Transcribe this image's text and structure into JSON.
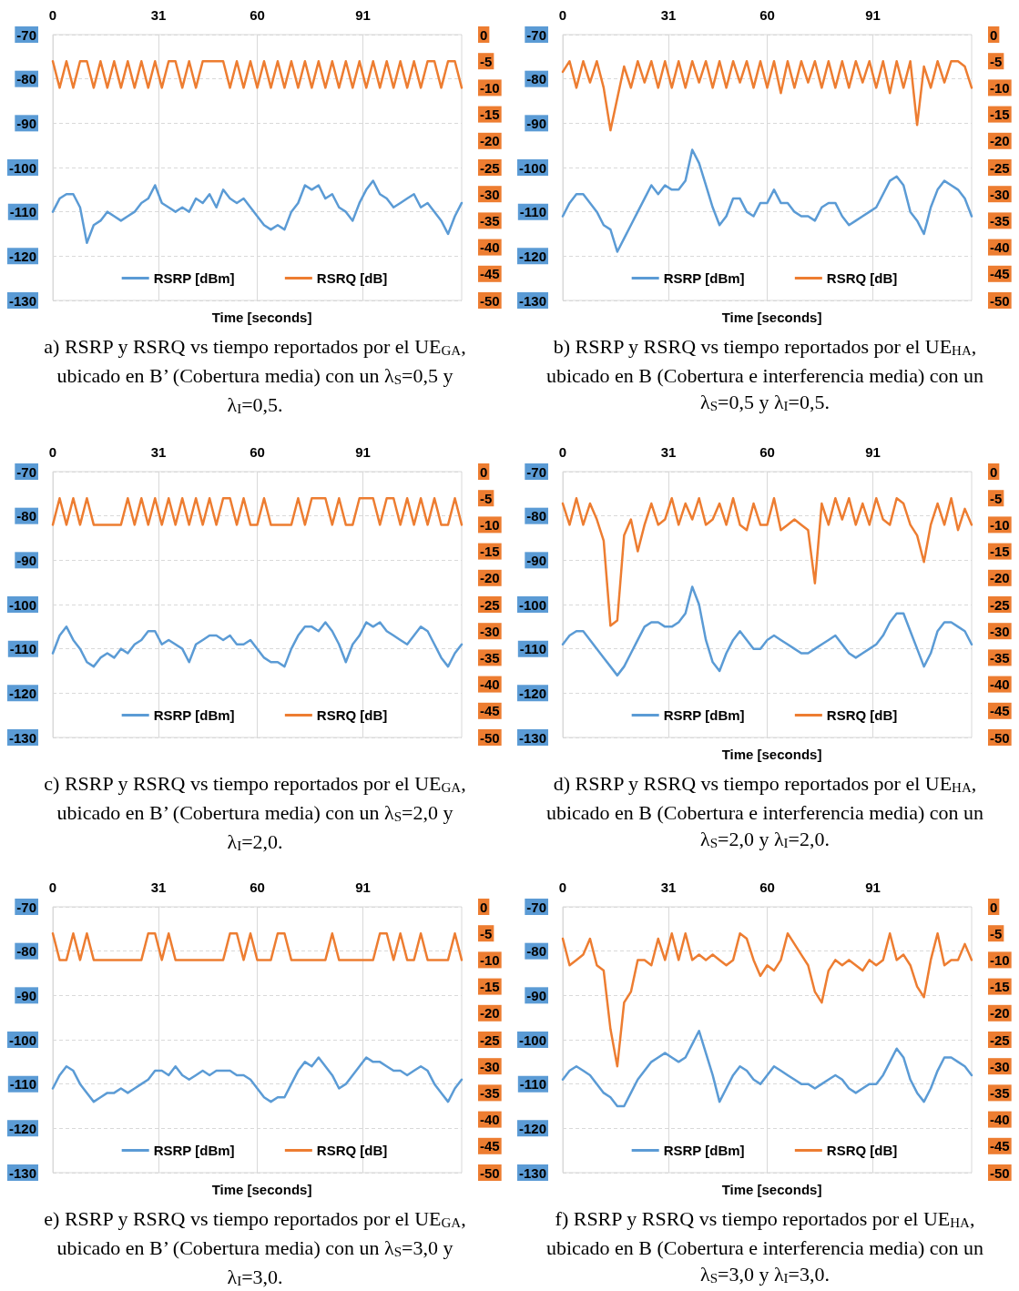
{
  "chart_data": [
    {
      "type": "line",
      "title": "a) RSRP y RSRQ vs tiempo reportados por el UE$_{GA}$, ubicado en B’ (Cobertura media) con un λ$_{S}$=0,5 y λ$_{I}$=0,5.",
      "xlabel": "Time [seconds]",
      "x": [
        0,
        2,
        4,
        6,
        8,
        10,
        12,
        14,
        16,
        18,
        20,
        22,
        24,
        26,
        28,
        30,
        32,
        34,
        36,
        38,
        40,
        42,
        44,
        46,
        48,
        50,
        52,
        54,
        56,
        58,
        60,
        62,
        64,
        66,
        68,
        70,
        72,
        74,
        76,
        78,
        80,
        82,
        84,
        86,
        88,
        90,
        92,
        94,
        96,
        98,
        100,
        102,
        104,
        106,
        108,
        110,
        112,
        114,
        116,
        118,
        120
      ],
      "series": [
        {
          "name": "RSRP [dBm]",
          "color": "#5b9bd5",
          "values": [
            -110,
            -107,
            -106,
            -106,
            -109,
            -117,
            -113,
            -112,
            -110,
            -111,
            -112,
            -111,
            -110,
            -108,
            -107,
            -104,
            -108,
            -109,
            -110,
            -109,
            -110,
            -107,
            -108,
            -106,
            -109,
            -105,
            -107,
            -108,
            -107,
            -109,
            -111,
            -113,
            -114,
            -113,
            -114,
            -110,
            -108,
            -104,
            -105,
            -104,
            -107,
            -106,
            -109,
            -110,
            -112,
            -108,
            -105,
            -103,
            -106,
            -107,
            -109,
            -108,
            -107,
            -106,
            -109,
            -108,
            -110,
            -112,
            -115,
            -111,
            -108
          ]
        },
        {
          "name": "RSRQ [dB]",
          "color": "#ed7d31",
          "axis": "y2",
          "values": [
            -5,
            -10,
            -5,
            -10,
            -5,
            -5,
            -10,
            -5,
            -10,
            -5,
            -10,
            -5,
            -10,
            -5,
            -10,
            -5,
            -10,
            -5,
            -5,
            -10,
            -5,
            -10,
            -5,
            -5,
            -5,
            -5,
            -10,
            -5,
            -10,
            -5,
            -10,
            -5,
            -10,
            -5,
            -10,
            -5,
            -10,
            -5,
            -10,
            -5,
            -10,
            -5,
            -10,
            -5,
            -10,
            -5,
            -10,
            -5,
            -10,
            -5,
            -10,
            -5,
            -10,
            -5,
            -10,
            -5,
            -5,
            -10,
            -5,
            -5,
            -10
          ]
        }
      ],
      "xlim": [
        0,
        120
      ],
      "xticks": [
        0,
        31,
        60,
        91
      ],
      "ylim": [
        -130,
        -70
      ],
      "yticks": [
        -130,
        -120,
        -110,
        -100,
        -90,
        -80,
        -70
      ],
      "y2lim": [
        -50,
        0
      ],
      "y2ticks": [
        -50,
        -45,
        -40,
        -35,
        -30,
        -25,
        -20,
        -15,
        -10,
        -5,
        0
      ],
      "grid": true,
      "legend": "bottom"
    },
    {
      "type": "line",
      "title": "b) RSRP y RSRQ vs tiempo reportados por el UE$_{HA}$, ubicado en B (Cobertura e interferencia media) con un λ$_{S}$=0,5 y λ$_{I}$=0,5.",
      "xlabel": "Time [seconds]",
      "x": [
        0,
        2,
        4,
        6,
        8,
        10,
        12,
        14,
        16,
        18,
        20,
        22,
        24,
        26,
        28,
        30,
        32,
        34,
        36,
        38,
        40,
        42,
        44,
        46,
        48,
        50,
        52,
        54,
        56,
        58,
        60,
        62,
        64,
        66,
        68,
        70,
        72,
        74,
        76,
        78,
        80,
        82,
        84,
        86,
        88,
        90,
        92,
        94,
        96,
        98,
        100,
        102,
        104,
        106,
        108,
        110,
        112,
        114,
        116,
        118,
        120
      ],
      "series": [
        {
          "name": "RSRP [dBm]",
          "color": "#5b9bd5",
          "values": [
            -111,
            -108,
            -106,
            -106,
            -108,
            -110,
            -113,
            -114,
            -119,
            -116,
            -113,
            -110,
            -107,
            -104,
            -106,
            -104,
            -105,
            -105,
            -103,
            -96,
            -99,
            -104,
            -109,
            -113,
            -111,
            -107,
            -107,
            -110,
            -111,
            -108,
            -108,
            -105,
            -108,
            -108,
            -110,
            -111,
            -111,
            -112,
            -109,
            -108,
            -108,
            -111,
            -113,
            -112,
            -111,
            -110,
            -109,
            -106,
            -103,
            -102,
            -104,
            -110,
            -112,
            -115,
            -109,
            -105,
            -103,
            -104,
            -105,
            -107,
            -111
          ]
        },
        {
          "name": "RSRQ [dB]",
          "color": "#ed7d31",
          "axis": "y2",
          "values": [
            -7,
            -5,
            -10,
            -5,
            -9,
            -5,
            -10,
            -18,
            -12,
            -6,
            -10,
            -5,
            -9,
            -5,
            -10,
            -5,
            -10,
            -5,
            -10,
            -5,
            -9,
            -5,
            -10,
            -5,
            -10,
            -5,
            -9,
            -5,
            -10,
            -5,
            -10,
            -5,
            -11,
            -5,
            -10,
            -5,
            -9,
            -5,
            -10,
            -5,
            -10,
            -5,
            -10,
            -5,
            -9,
            -5,
            -10,
            -5,
            -11,
            -5,
            -10,
            -5,
            -17,
            -6,
            -10,
            -5,
            -9,
            -5,
            -5,
            -6,
            -10
          ]
        }
      ],
      "xlim": [
        0,
        120
      ],
      "xticks": [
        0,
        31,
        60,
        91
      ],
      "ylim": [
        -130,
        -70
      ],
      "yticks": [
        -130,
        -120,
        -110,
        -100,
        -90,
        -80,
        -70
      ],
      "y2lim": [
        -50,
        0
      ],
      "y2ticks": [
        -50,
        -45,
        -40,
        -35,
        -30,
        -25,
        -20,
        -15,
        -10,
        -5,
        0
      ],
      "grid": true,
      "legend": "bottom"
    },
    {
      "type": "line",
      "title": "c) RSRP y RSRQ vs tiempo reportados por el UE$_{GA}$, ubicado en B’ (Cobertura media) con un λ$_{S}$=2,0 y λ$_{I}$=2,0.",
      "x": [
        0,
        2,
        4,
        6,
        8,
        10,
        12,
        14,
        16,
        18,
        20,
        22,
        24,
        26,
        28,
        30,
        32,
        34,
        36,
        38,
        40,
        42,
        44,
        46,
        48,
        50,
        52,
        54,
        56,
        58,
        60,
        62,
        64,
        66,
        68,
        70,
        72,
        74,
        76,
        78,
        80,
        82,
        84,
        86,
        88,
        90,
        92,
        94,
        96,
        98,
        100,
        102,
        104,
        106,
        108,
        110,
        112,
        114,
        116,
        118,
        120
      ],
      "series": [
        {
          "name": "RSRP [dBm]",
          "color": "#5b9bd5",
          "values": [
            -111,
            -107,
            -105,
            -108,
            -110,
            -113,
            -114,
            -112,
            -111,
            -112,
            -110,
            -111,
            -109,
            -108,
            -106,
            -106,
            -109,
            -108,
            -109,
            -110,
            -113,
            -109,
            -108,
            -107,
            -107,
            -108,
            -107,
            -109,
            -109,
            -108,
            -110,
            -112,
            -113,
            -113,
            -114,
            -110,
            -107,
            -105,
            -105,
            -106,
            -104,
            -106,
            -109,
            -113,
            -109,
            -107,
            -104,
            -105,
            -104,
            -106,
            -107,
            -108,
            -109,
            -107,
            -105,
            -106,
            -109,
            -112,
            -114,
            -111,
            -109
          ]
        },
        {
          "name": "RSRQ [dB]",
          "color": "#ed7d31",
          "axis": "y2",
          "values": [
            -10,
            -5,
            -10,
            -5,
            -10,
            -5,
            -10,
            -10,
            -10,
            -10,
            -10,
            -5,
            -10,
            -5,
            -10,
            -5,
            -10,
            -5,
            -10,
            -5,
            -10,
            -5,
            -10,
            -5,
            -10,
            -5,
            -5,
            -10,
            -5,
            -10,
            -10,
            -5,
            -10,
            -10,
            -10,
            -10,
            -5,
            -10,
            -5,
            -5,
            -5,
            -10,
            -5,
            -10,
            -10,
            -5,
            -5,
            -5,
            -10,
            -5,
            -5,
            -10,
            -5,
            -10,
            -5,
            -10,
            -5,
            -10,
            -10,
            -5,
            -10
          ]
        }
      ],
      "xlim": [
        0,
        120
      ],
      "xticks": [
        0,
        31,
        60,
        91
      ],
      "ylim": [
        -130,
        -70
      ],
      "yticks": [
        -130,
        -120,
        -110,
        -100,
        -90,
        -80,
        -70
      ],
      "y2lim": [
        -50,
        0
      ],
      "y2ticks": [
        -50,
        -45,
        -40,
        -35,
        -30,
        -25,
        -20,
        -15,
        -10,
        -5,
        0
      ],
      "grid": true,
      "legend": "bottom"
    },
    {
      "type": "line",
      "title": "d) RSRP y RSRQ vs tiempo reportados por el UE$_{HA}$, ubicado en B (Cobertura e interferencia media) con un λ$_{S}$=2,0 y λ$_{I}$=2,0.",
      "xlabel": "Time [seconds]",
      "x": [
        0,
        2,
        4,
        6,
        8,
        10,
        12,
        14,
        16,
        18,
        20,
        22,
        24,
        26,
        28,
        30,
        32,
        34,
        36,
        38,
        40,
        42,
        44,
        46,
        48,
        50,
        52,
        54,
        56,
        58,
        60,
        62,
        64,
        66,
        68,
        70,
        72,
        74,
        76,
        78,
        80,
        82,
        84,
        86,
        88,
        90,
        92,
        94,
        96,
        98,
        100,
        102,
        104,
        106,
        108,
        110,
        112,
        114,
        116,
        118,
        120
      ],
      "series": [
        {
          "name": "RSRP [dBm]",
          "color": "#5b9bd5",
          "values": [
            -109,
            -107,
            -106,
            -106,
            -108,
            -110,
            -112,
            -114,
            -116,
            -114,
            -111,
            -108,
            -105,
            -104,
            -104,
            -105,
            -105,
            -104,
            -102,
            -96,
            -100,
            -108,
            -113,
            -115,
            -111,
            -108,
            -106,
            -108,
            -110,
            -110,
            -108,
            -107,
            -108,
            -109,
            -110,
            -111,
            -111,
            -110,
            -109,
            -108,
            -107,
            -109,
            -111,
            -112,
            -111,
            -110,
            -109,
            -107,
            -104,
            -102,
            -102,
            -106,
            -110,
            -114,
            -111,
            -106,
            -104,
            -104,
            -105,
            -106,
            -109
          ]
        },
        {
          "name": "RSRQ [dB]",
          "color": "#ed7d31",
          "axis": "y2",
          "values": [
            -6,
            -10,
            -5,
            -10,
            -6,
            -9,
            -13,
            -29,
            -28,
            -12,
            -9,
            -15,
            -10,
            -6,
            -10,
            -9,
            -5,
            -10,
            -6,
            -9,
            -5,
            -10,
            -9,
            -6,
            -10,
            -5,
            -10,
            -11,
            -6,
            -10,
            -10,
            -5,
            -11,
            -10,
            -9,
            -10,
            -11,
            -21,
            -6,
            -10,
            -5,
            -9,
            -5,
            -10,
            -6,
            -10,
            -5,
            -9,
            -10,
            -5,
            -6,
            -10,
            -12,
            -17,
            -10,
            -6,
            -10,
            -5,
            -11,
            -7,
            -10
          ]
        }
      ],
      "xlim": [
        0,
        120
      ],
      "xticks": [
        0,
        31,
        60,
        91
      ],
      "ylim": [
        -130,
        -70
      ],
      "yticks": [
        -130,
        -120,
        -110,
        -100,
        -90,
        -80,
        -70
      ],
      "y2lim": [
        -50,
        0
      ],
      "y2ticks": [
        -50,
        -45,
        -40,
        -35,
        -30,
        -25,
        -20,
        -15,
        -10,
        -5,
        0
      ],
      "grid": true,
      "legend": "bottom"
    },
    {
      "type": "line",
      "title": "e) RSRP y RSRQ vs tiempo reportados por el UE$_{GA}$, ubicado en B’ (Cobertura media) con un λ$_{S}$=3,0 y λ$_{I}$=3,0.",
      "xlabel": "Time [seconds]",
      "x": [
        0,
        2,
        4,
        6,
        8,
        10,
        12,
        14,
        16,
        18,
        20,
        22,
        24,
        26,
        28,
        30,
        32,
        34,
        36,
        38,
        40,
        42,
        44,
        46,
        48,
        50,
        52,
        54,
        56,
        58,
        60,
        62,
        64,
        66,
        68,
        70,
        72,
        74,
        76,
        78,
        80,
        82,
        84,
        86,
        88,
        90,
        92,
        94,
        96,
        98,
        100,
        102,
        104,
        106,
        108,
        110,
        112,
        114,
        116,
        118,
        120
      ],
      "series": [
        {
          "name": "RSRP [dBm]",
          "color": "#5b9bd5",
          "values": [
            -111,
            -108,
            -106,
            -107,
            -110,
            -112,
            -114,
            -113,
            -112,
            -112,
            -111,
            -112,
            -111,
            -110,
            -109,
            -107,
            -107,
            -108,
            -106,
            -108,
            -109,
            -108,
            -107,
            -108,
            -107,
            -107,
            -107,
            -108,
            -108,
            -109,
            -111,
            -113,
            -114,
            -113,
            -113,
            -110,
            -107,
            -105,
            -106,
            -104,
            -106,
            -108,
            -111,
            -110,
            -108,
            -106,
            -104,
            -105,
            -105,
            -106,
            -107,
            -107,
            -108,
            -107,
            -106,
            -107,
            -110,
            -112,
            -114,
            -111,
            -109
          ]
        },
        {
          "name": "RSRQ [dB]",
          "color": "#ed7d31",
          "axis": "y2",
          "values": [
            -5,
            -10,
            -10,
            -5,
            -10,
            -5,
            -10,
            -10,
            -10,
            -10,
            -10,
            -10,
            -10,
            -10,
            -5,
            -5,
            -10,
            -5,
            -10,
            -10,
            -10,
            -10,
            -10,
            -10,
            -10,
            -10,
            -5,
            -5,
            -10,
            -5,
            -10,
            -10,
            -10,
            -5,
            -5,
            -10,
            -10,
            -10,
            -10,
            -10,
            -10,
            -5,
            -10,
            -10,
            -10,
            -10,
            -10,
            -10,
            -5,
            -5,
            -10,
            -5,
            -10,
            -10,
            -5,
            -10,
            -10,
            -10,
            -10,
            -5,
            -10
          ]
        }
      ],
      "xlim": [
        0,
        120
      ],
      "xticks": [
        0,
        31,
        60,
        91
      ],
      "ylim": [
        -130,
        -70
      ],
      "yticks": [
        -130,
        -120,
        -110,
        -100,
        -90,
        -80,
        -70
      ],
      "y2lim": [
        -50,
        0
      ],
      "y2ticks": [
        -50,
        -45,
        -40,
        -35,
        -30,
        -25,
        -20,
        -15,
        -10,
        -5,
        0
      ],
      "grid": true,
      "legend": "bottom"
    },
    {
      "type": "line",
      "title": "f) RSRP y RSRQ vs tiempo reportados por el UE$_{HA}$, ubicado en B (Cobertura e interferencia media) con un λ$_{S}$=3,0 y λ$_{I}$=3,0.",
      "xlabel": "Time [seconds]",
      "x": [
        0,
        2,
        4,
        6,
        8,
        10,
        12,
        14,
        16,
        18,
        20,
        22,
        24,
        26,
        28,
        30,
        32,
        34,
        36,
        38,
        40,
        42,
        44,
        46,
        48,
        50,
        52,
        54,
        56,
        58,
        60,
        62,
        64,
        66,
        68,
        70,
        72,
        74,
        76,
        78,
        80,
        82,
        84,
        86,
        88,
        90,
        92,
        94,
        96,
        98,
        100,
        102,
        104,
        106,
        108,
        110,
        112,
        114,
        116,
        118,
        120
      ],
      "series": [
        {
          "name": "RSRP [dBm]",
          "color": "#5b9bd5",
          "values": [
            -109,
            -107,
            -106,
            -107,
            -108,
            -110,
            -112,
            -113,
            -115,
            -115,
            -112,
            -109,
            -107,
            -105,
            -104,
            -103,
            -104,
            -105,
            -104,
            -101,
            -98,
            -103,
            -108,
            -114,
            -111,
            -108,
            -106,
            -107,
            -109,
            -110,
            -108,
            -106,
            -107,
            -108,
            -109,
            -110,
            -110,
            -111,
            -110,
            -109,
            -108,
            -109,
            -111,
            -112,
            -111,
            -110,
            -110,
            -108,
            -105,
            -102,
            -104,
            -109,
            -112,
            -114,
            -111,
            -107,
            -104,
            -104,
            -105,
            -106,
            -108
          ]
        },
        {
          "name": "RSRQ [dB]",
          "color": "#ed7d31",
          "axis": "y2",
          "values": [
            -6,
            -11,
            -10,
            -9,
            -6,
            -11,
            -12,
            -23,
            -30,
            -18,
            -16,
            -10,
            -10,
            -11,
            -6,
            -10,
            -5,
            -10,
            -5,
            -10,
            -9,
            -10,
            -9,
            -10,
            -11,
            -10,
            -5,
            -6,
            -10,
            -13,
            -11,
            -12,
            -10,
            -5,
            -7,
            -9,
            -11,
            -16,
            -18,
            -12,
            -10,
            -11,
            -10,
            -11,
            -12,
            -10,
            -11,
            -10,
            -5,
            -10,
            -9,
            -11,
            -15,
            -17,
            -10,
            -5,
            -11,
            -10,
            -10,
            -7,
            -10
          ]
        }
      ],
      "xlim": [
        0,
        120
      ],
      "xticks": [
        0,
        31,
        60,
        91
      ],
      "ylim": [
        -130,
        -70
      ],
      "yticks": [
        -130,
        -120,
        -110,
        -100,
        -90,
        -80,
        -70
      ],
      "y2lim": [
        -50,
        0
      ],
      "y2ticks": [
        -50,
        -45,
        -40,
        -35,
        -30,
        -25,
        -20,
        -15,
        -10,
        -5,
        0
      ],
      "grid": true,
      "legend": "bottom"
    }
  ]
}
